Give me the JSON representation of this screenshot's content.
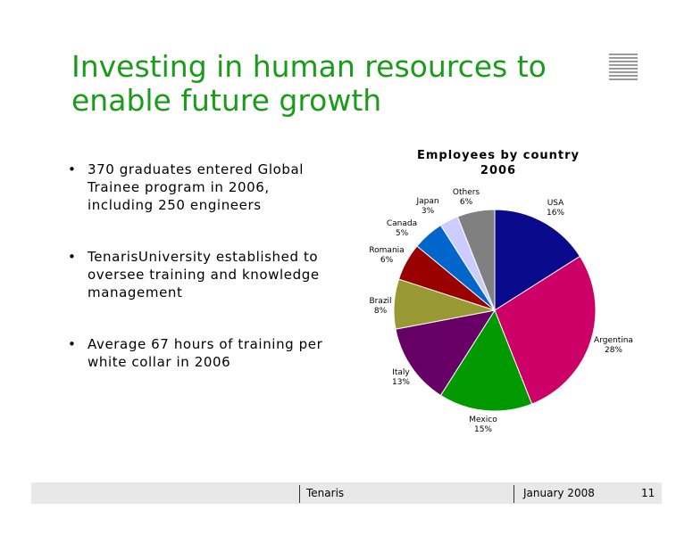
{
  "slide": {
    "title_line1": "Investing in human resources to",
    "title_line2": "enable future growth",
    "bullets": [
      "370 graduates entered Global Trainee program in 2006, including 250 engineers",
      "TenarisUniversity established to oversee training and knowledge management",
      "Average 67 hours of training per white collar in 2006"
    ],
    "bullet_glyph": "•"
  },
  "chart_data": {
    "type": "pie",
    "title_line1": "Employees by country",
    "title_line2": "2006",
    "slices": [
      {
        "label": "USA",
        "percent_label": "16%",
        "value": 16,
        "color": "#0a0a8c"
      },
      {
        "label": "Argentina",
        "percent_label": "28%",
        "value": 28,
        "color": "#cc0066"
      },
      {
        "label": "Mexico",
        "percent_label": "15%",
        "value": 15,
        "color": "#009900"
      },
      {
        "label": "Italy",
        "percent_label": "13%",
        "value": 13,
        "color": "#660066"
      },
      {
        "label": "Brazil",
        "percent_label": "8%",
        "value": 8,
        "color": "#999933"
      },
      {
        "label": "Romania",
        "percent_label": "6%",
        "value": 6,
        "color": "#990000"
      },
      {
        "label": "Canada",
        "percent_label": "5%",
        "value": 5,
        "color": "#0066cc"
      },
      {
        "label": "Japan",
        "percent_label": "3%",
        "value": 3,
        "color": "#ccccff"
      },
      {
        "label": "Others",
        "percent_label": "6%",
        "value": 6,
        "color": "#808080"
      }
    ]
  },
  "footer": {
    "company": "Tenaris",
    "date": "January 2008",
    "page_number": "11"
  }
}
